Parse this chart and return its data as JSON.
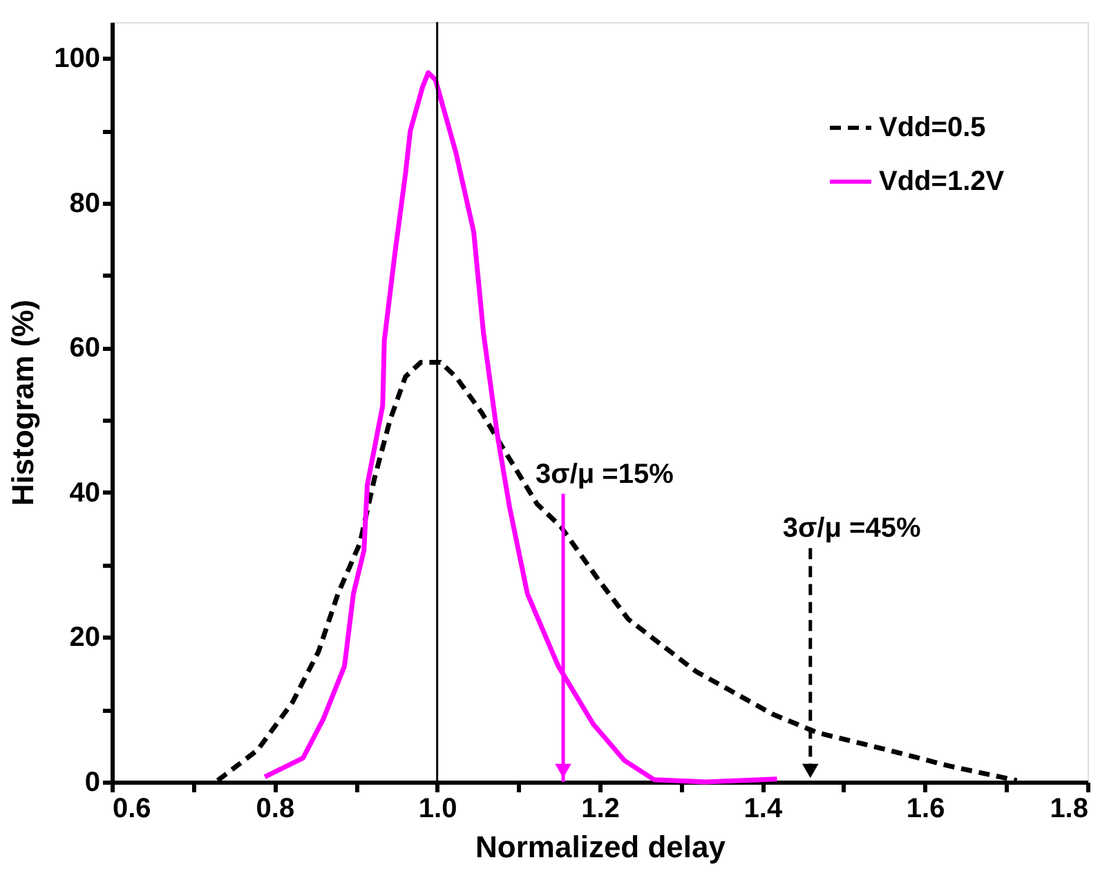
{
  "chart_data": {
    "type": "line",
    "xlabel": "Normalized delay",
    "ylabel": "Histogram (%)",
    "xlim": [
      0.6,
      1.8
    ],
    "xticks": [
      0.6,
      {
        "value": 0.7,
        "label": null
      },
      0.8,
      {
        "value": 0.9,
        "label": null
      },
      {
        "value": 1.0,
        "label": "1.0"
      },
      {
        "value": 1.1,
        "label": null
      },
      1.2,
      {
        "value": 1.3,
        "label": null
      },
      1.4,
      {
        "value": 1.5,
        "label": null
      },
      1.6,
      {
        "value": 1.7,
        "label": null
      },
      1.8
    ],
    "ylim": [
      0,
      105
    ],
    "yticks": [
      0,
      {
        "value": 10,
        "label": null
      },
      20,
      {
        "value": 30,
        "label": null
      },
      40,
      {
        "value": 50,
        "label": null
      },
      60,
      {
        "value": 70,
        "label": null
      },
      80,
      {
        "value": 90,
        "label": null
      },
      100
    ],
    "grid": false,
    "legend": "top right",
    "marker": "none",
    "series": [
      {
        "name": "Vdd=0.5",
        "color": "#000000",
        "line_style": "dashed",
        "x": [
          0.73,
          0.779,
          0.822,
          0.854,
          0.878,
          0.905,
          0.923,
          0.942,
          0.961,
          0.98,
          1.004,
          1.023,
          1.055,
          1.079,
          1.123,
          1.152,
          1.198,
          1.235,
          1.318,
          1.412,
          1.468,
          1.555,
          1.63,
          1.713
        ],
        "values": [
          0.2,
          4.4,
          11,
          18,
          26,
          33,
          42,
          50,
          56,
          58,
          58,
          56,
          51,
          46.5,
          38.4,
          35.3,
          28,
          22.5,
          15.3,
          9.4,
          6.8,
          4.4,
          2.2,
          0.2
        ]
      },
      {
        "name": "Vdd=1.2V",
        "color": "#ff00ff",
        "line_style": "solid",
        "x": [
          0.788,
          0.835,
          0.86,
          0.886,
          0.897,
          0.91,
          0.914,
          0.933,
          0.935,
          0.948,
          0.961,
          0.967,
          0.982,
          0.989,
          0.998,
          1.023,
          1.045,
          1.057,
          1.074,
          1.089,
          1.111,
          1.149,
          1.192,
          1.23,
          1.267,
          1.33,
          1.418
        ],
        "values": [
          0.7,
          3.3,
          8.7,
          16,
          26,
          32,
          41,
          52,
          61,
          73,
          84,
          90,
          96,
          98,
          97,
          87,
          76,
          62,
          48,
          38,
          26,
          16,
          8,
          3,
          0.3,
          0,
          0.4
        ]
      }
    ],
    "ref_lines": [
      {
        "axis": "x",
        "value": 1.0,
        "color": "#000000",
        "line_style": "solid"
      }
    ],
    "annotations": [
      {
        "text": "3σ/μ =45%",
        "x": 1.459,
        "y": 7.5
      },
      {
        "text": "3σ/μ =15%",
        "x": 1.155,
        "y": 15
      }
    ]
  }
}
